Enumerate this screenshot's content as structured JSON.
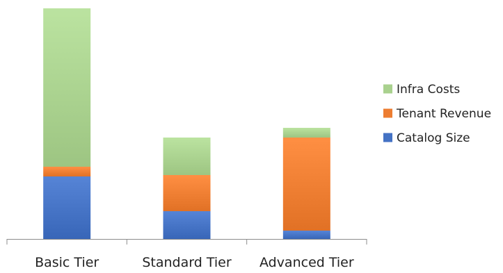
{
  "chart_data": {
    "type": "bar",
    "stacked": true,
    "categories": [
      "Basic Tier",
      "Standard Tier",
      "Advanced Tier"
    ],
    "series": [
      {
        "name": "Catalog Size",
        "color": "#4472C4",
        "values": [
          90,
          40,
          12
        ]
      },
      {
        "name": "Tenant Revenue",
        "color": "#ED7D31",
        "values": [
          14,
          52,
          134
        ]
      },
      {
        "name": "Infra Costs",
        "color": "#A9D18E",
        "values": [
          228,
          54,
          14
        ]
      }
    ],
    "title": "",
    "xlabel": "",
    "ylabel": "",
    "ylim": [
      0,
      334
    ],
    "axes": {
      "y_visible": false,
      "x_axis_line": true,
      "x_tick_marks": true
    },
    "grid": false,
    "legend": {
      "position": "right",
      "order": [
        "Infra Costs",
        "Tenant Revenue",
        "Catalog Size"
      ]
    }
  }
}
